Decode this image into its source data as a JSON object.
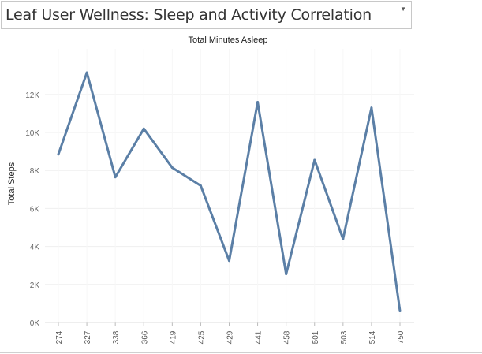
{
  "selector": {
    "title": "Leaf User Wellness: Sleep and Activity Correlation",
    "icon": "chevron-down-icon"
  },
  "chart_data": {
    "type": "line",
    "title": "Total Minutes Asleep",
    "xlabel": "",
    "ylabel": "Total Steps",
    "categories": [
      "274",
      "327",
      "338",
      "366",
      "419",
      "425",
      "429",
      "441",
      "458",
      "501",
      "503",
      "514",
      "750"
    ],
    "series": [
      {
        "values": [
          8850,
          13150,
          7650,
          10200,
          8150,
          7200,
          3250,
          11600,
          2550,
          8550,
          4400,
          11300,
          600
        ],
        "color": "#5b7fa6"
      }
    ],
    "ylim": [
      0,
      14400
    ],
    "yticks": [
      {
        "value": 0,
        "label": "0K"
      },
      {
        "value": 2000,
        "label": "2K"
      },
      {
        "value": 4000,
        "label": "4K"
      },
      {
        "value": 6000,
        "label": "6K"
      },
      {
        "value": 8000,
        "label": "8K"
      },
      {
        "value": 10000,
        "label": "10K"
      },
      {
        "value": 12000,
        "label": "12K"
      }
    ],
    "grid": true,
    "legend": "none"
  }
}
